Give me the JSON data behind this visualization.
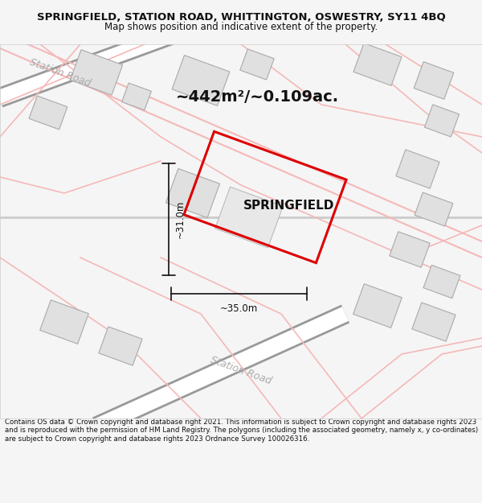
{
  "title_line1": "SPRINGFIELD, STATION ROAD, WHITTINGTON, OSWESTRY, SY11 4BQ",
  "title_line2": "Map shows position and indicative extent of the property.",
  "area_text": "~442m²/~0.109ac.",
  "property_name": "SPRINGFIELD",
  "dim_width": "~35.0m",
  "dim_height": "~31.0m",
  "footer_text": "Contains OS data © Crown copyright and database right 2021. This information is subject to Crown copyright and database rights 2023 and is reproduced with the permission of HM Land Registry. The polygons (including the associated geometry, namely x, y co-ordinates) are subject to Crown copyright and database rights 2023 Ordnance Survey 100026316.",
  "bg_color": "#f5f5f5",
  "map_bg": "#ffffff",
  "road_color_light": "#f5b8b8",
  "road_color_dark": "#cccccc",
  "building_color": "#e0e0e0",
  "building_edge": "#aaaaaa",
  "property_outline_color": "#dd0000",
  "property_fill": "#f0f0f0",
  "text_color": "#111111",
  "station_road_color": "#aaaaaa",
  "dimension_color": "#111111"
}
